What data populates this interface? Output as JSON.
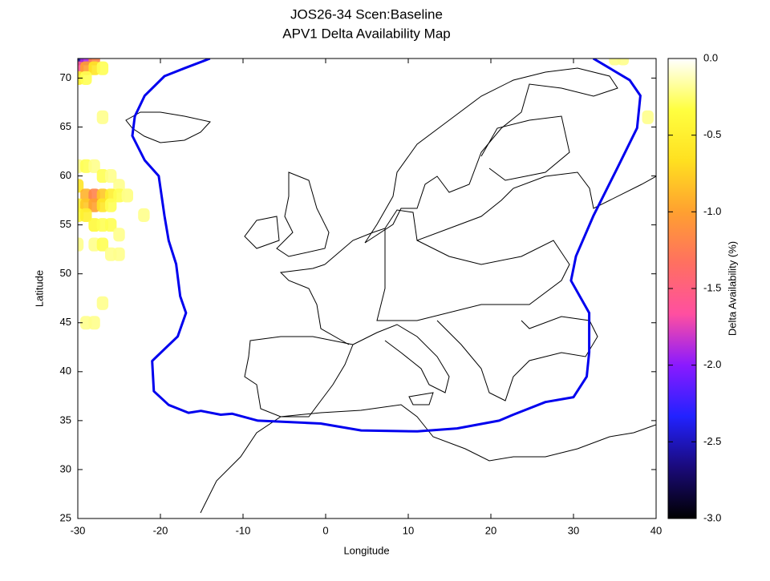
{
  "chart_data": {
    "type": "heatmap",
    "title": "JOS26-34 Scen:Baseline",
    "subtitle": "APV1 Delta Availability Map",
    "x_label": "Longitude",
    "y_label": "Latitude",
    "xlim": [
      -30,
      40
    ],
    "ylim": [
      25,
      72
    ],
    "xticks": [
      -30,
      -20,
      -10,
      0,
      10,
      20,
      30,
      40
    ],
    "yticks": [
      25,
      30,
      35,
      40,
      45,
      50,
      55,
      60,
      65,
      70
    ],
    "cells": {
      "x": [
        -30,
        -29,
        -28,
        -30,
        -29,
        -28,
        -27,
        -30,
        -29,
        -27,
        -30,
        -29,
        -28,
        -27,
        -26,
        -25,
        -24,
        -30,
        -29,
        -28,
        -27,
        -26,
        -25,
        -24,
        -30,
        -29,
        -28,
        -27,
        -26,
        -30,
        -29,
        -28,
        -27,
        -26,
        -25,
        -30,
        -28,
        -27,
        -26,
        -25,
        -22,
        -27,
        -28,
        -29,
        35,
        36,
        39
      ],
      "y": [
        72,
        72,
        72,
        71,
        71,
        71,
        71,
        70,
        70,
        66,
        61,
        61,
        61,
        60,
        60,
        59,
        58,
        59,
        58,
        58,
        58,
        58,
        58,
        58,
        57,
        57,
        57,
        57,
        57,
        56,
        56,
        55,
        55,
        55,
        54,
        53,
        53,
        53,
        52,
        52,
        56,
        47,
        45,
        45,
        72,
        72,
        66
      ],
      "values": [
        -2.6,
        -1.9,
        -1.2,
        -1.6,
        -1.0,
        -0.6,
        -0.3,
        -0.5,
        -0.3,
        -0.2,
        -0.2,
        -0.3,
        -0.2,
        -0.3,
        -0.2,
        -0.2,
        -0.2,
        -0.6,
        -0.9,
        -1.2,
        -0.8,
        -0.5,
        -0.3,
        -0.2,
        -0.5,
        -0.8,
        -1.0,
        -0.6,
        -0.3,
        -0.4,
        -0.5,
        -0.4,
        -0.3,
        -0.3,
        -0.2,
        -0.2,
        -0.2,
        -0.3,
        -0.2,
        -0.2,
        -0.2,
        -0.2,
        -0.2,
        -0.2,
        -0.2,
        -0.2,
        -0.2
      ]
    },
    "series": [
      {
        "color": "#0000ee",
        "x": [
          -14,
          -17.1,
          -19.5,
          -21.9,
          -23.1,
          -23.4,
          -21.9,
          -20.2,
          -19.5,
          -19.0,
          -18.1,
          -17.6,
          -16.9,
          -17.9,
          -20.5,
          -21.0,
          -20.8,
          -19.0,
          -16.6,
          -15.1,
          -12.7,
          -11.3,
          -8.2,
          -0.6,
          4.3,
          11.1,
          15.9,
          21.0,
          22.7,
          26.6,
          30.0,
          31.6,
          31.9,
          31.9,
          29.7,
          30.3,
          32.4,
          35.3,
          37.7,
          38.1,
          36.8,
          34.4,
          32.4
        ],
        "y": [
          72,
          71.0,
          70.2,
          68.2,
          66.1,
          64.1,
          61.6,
          60.0,
          55.9,
          53.4,
          51.0,
          47.7,
          46.0,
          43.6,
          41.5,
          41.1,
          38.0,
          36.6,
          35.8,
          36.0,
          35.6,
          35.7,
          35.0,
          34.7,
          34.0,
          33.9,
          34.2,
          35.0,
          35.6,
          36.9,
          37.4,
          39.5,
          42.0,
          46.0,
          49.3,
          51.8,
          55.9,
          60.8,
          64.9,
          68.2,
          69.8,
          71.0,
          72
        ]
      }
    ],
    "colorbar": {
      "label": "Delta Availability (%)",
      "lim": [
        -3,
        0
      ],
      "ticks": [
        {
          "value": 0,
          "label": "0.0"
        },
        -0.5,
        {
          "value": -1,
          "label": "-1.0"
        },
        -1.5,
        {
          "value": -2,
          "label": "-2.0"
        },
        -2.5,
        {
          "value": -3,
          "label": "-3.0"
        }
      ],
      "palette": [
        "#000000",
        "#1a0a7a",
        "#2222ff",
        "#8a1aff",
        "#ff4fa0",
        "#ff7060",
        "#ffa030",
        "#ffe020",
        "#ffff40",
        "#ffffff"
      ]
    }
  }
}
